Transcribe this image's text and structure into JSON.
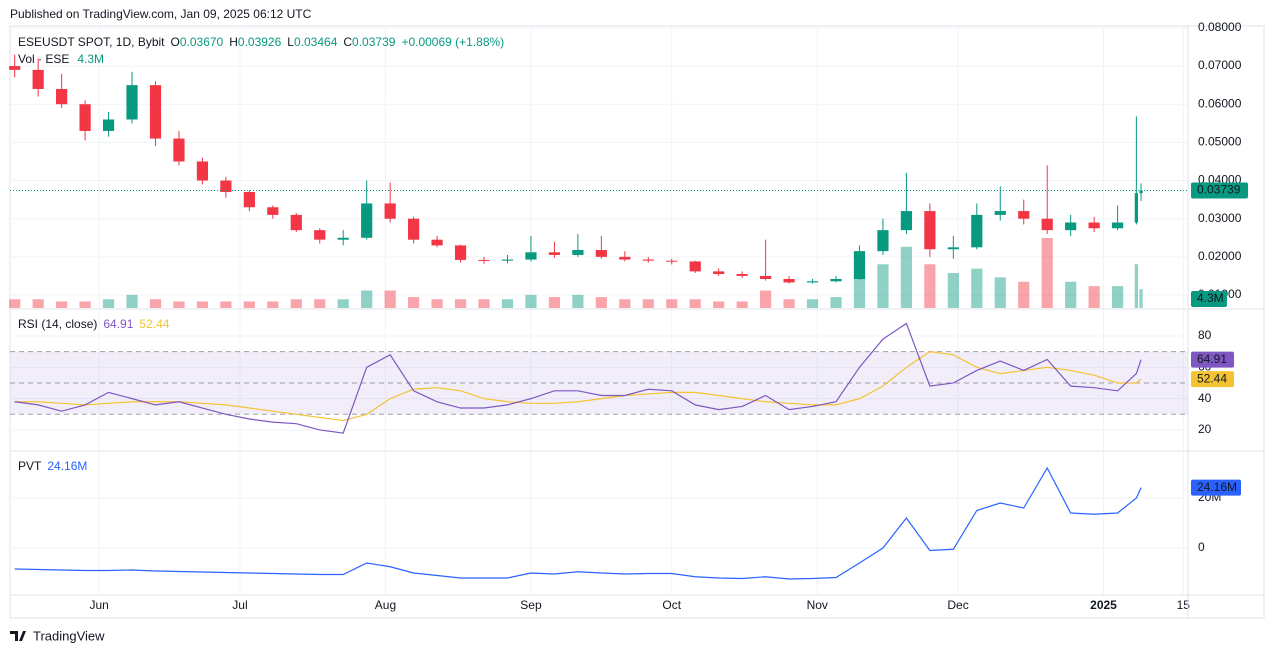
{
  "page": {
    "published": "Published on TradingView.com, Jan 09, 2025 06:12 UTC",
    "brand": "TradingView"
  },
  "chart_data": [
    {
      "type": "candlestick",
      "title": "ESEUSDT SPOT, 1D, Bybit",
      "ohlc_legend": [
        {
          "key": "O",
          "text": "0.03670"
        },
        {
          "key": "H",
          "text": "0.03926"
        },
        {
          "key": "L",
          "text": "0.03464"
        },
        {
          "key": "C",
          "text": "0.03739"
        }
      ],
      "change": "+0.00069 (+1.88%)",
      "up_color": "#089981",
      "down_color": "#f23645",
      "x": [
        1,
        6,
        11,
        16,
        21,
        26,
        31,
        36,
        41,
        46,
        51,
        56,
        61,
        66,
        71,
        76,
        81,
        86,
        91,
        96,
        101,
        106,
        111,
        116,
        121,
        126,
        131,
        136,
        141,
        146,
        151,
        156,
        161,
        166,
        171,
        176,
        181,
        186,
        191,
        196,
        201,
        206,
        211,
        216,
        221,
        226,
        231,
        236,
        240,
        241
      ],
      "open": [
        0.07,
        0.069,
        0.064,
        0.06,
        0.053,
        0.056,
        0.065,
        0.051,
        0.045,
        0.04,
        0.037,
        0.033,
        0.031,
        0.027,
        0.0245,
        0.025,
        0.034,
        0.03,
        0.0245,
        0.023,
        0.0192,
        0.019,
        0.0193,
        0.0212,
        0.0205,
        0.0218,
        0.02,
        0.0193,
        0.019,
        0.0188,
        0.0162,
        0.0155,
        0.015,
        0.0142,
        0.0133,
        0.0136,
        0.0142,
        0.0215,
        0.027,
        0.032,
        0.022,
        0.0225,
        0.031,
        0.032,
        0.03,
        0.027,
        0.029,
        0.0275,
        0.029,
        0.0367
      ],
      "high": [
        0.073,
        0.072,
        0.068,
        0.061,
        0.058,
        0.0685,
        0.066,
        0.053,
        0.046,
        0.041,
        0.0375,
        0.0335,
        0.0315,
        0.0275,
        0.027,
        0.04,
        0.0395,
        0.0305,
        0.0255,
        0.0232,
        0.02,
        0.0205,
        0.0255,
        0.024,
        0.026,
        0.0255,
        0.0215,
        0.02,
        0.0195,
        0.019,
        0.017,
        0.0162,
        0.0245,
        0.015,
        0.0142,
        0.015,
        0.023,
        0.03,
        0.042,
        0.034,
        0.0255,
        0.034,
        0.0385,
        0.035,
        0.044,
        0.031,
        0.0305,
        0.0335,
        0.0568,
        0.03926
      ],
      "low": [
        0.067,
        0.062,
        0.059,
        0.0505,
        0.0515,
        0.055,
        0.049,
        0.044,
        0.039,
        0.0355,
        0.032,
        0.03,
        0.0265,
        0.0235,
        0.023,
        0.0245,
        0.029,
        0.0235,
        0.0225,
        0.0185,
        0.0182,
        0.0183,
        0.0188,
        0.0198,
        0.02,
        0.0195,
        0.0188,
        0.0185,
        0.018,
        0.0158,
        0.015,
        0.0145,
        0.0138,
        0.013,
        0.013,
        0.0133,
        0.014,
        0.0205,
        0.026,
        0.02,
        0.0195,
        0.022,
        0.0295,
        0.0285,
        0.026,
        0.0255,
        0.0265,
        0.027,
        0.0285,
        0.03464
      ],
      "close": [
        0.069,
        0.064,
        0.06,
        0.053,
        0.056,
        0.065,
        0.051,
        0.045,
        0.04,
        0.037,
        0.033,
        0.031,
        0.027,
        0.0245,
        0.025,
        0.034,
        0.03,
        0.0245,
        0.023,
        0.0192,
        0.019,
        0.0193,
        0.0212,
        0.0205,
        0.0218,
        0.02,
        0.0193,
        0.019,
        0.0188,
        0.0162,
        0.0155,
        0.015,
        0.0142,
        0.0133,
        0.0136,
        0.0142,
        0.0215,
        0.027,
        0.032,
        0.022,
        0.0225,
        0.031,
        0.032,
        0.03,
        0.027,
        0.029,
        0.0275,
        0.029,
        0.0367,
        0.03739
      ],
      "volume": {
        "name": "Vol · ESE",
        "last_label": "4.3M",
        "values": [
          2,
          2,
          1.5,
          1.5,
          2,
          3,
          2,
          1.5,
          1.5,
          1.5,
          1.5,
          1.5,
          2,
          2,
          2,
          4,
          4,
          2.5,
          2,
          2,
          2,
          2,
          3,
          2.5,
          3,
          2.5,
          2,
          2,
          2,
          2,
          1.5,
          1.5,
          4,
          2,
          2,
          2.5,
          8,
          10,
          14,
          10,
          8,
          9,
          7,
          6,
          16,
          6,
          5,
          5,
          10,
          4.3
        ]
      },
      "last_price": {
        "value": 0.03739,
        "label": "0.03739"
      },
      "xlim": [
        0,
        251
      ],
      "xticks": [
        {
          "value": 19,
          "label": "Jun"
        },
        {
          "value": 49,
          "label": "Jul"
        },
        {
          "value": 80,
          "label": "Aug"
        },
        {
          "value": 111,
          "label": "Sep"
        },
        {
          "value": 141,
          "label": "Oct"
        },
        {
          "value": 172,
          "label": "Nov"
        },
        {
          "value": 202,
          "label": "Dec"
        },
        {
          "value": 233,
          "label": "2025"
        },
        {
          "value": 250,
          "label": "15"
        }
      ],
      "ylim": [
        0.0066,
        0.0805
      ],
      "yticks": [
        {
          "value": 0.01,
          "label": "0.01000"
        },
        {
          "value": 0.02,
          "label": "0.02000"
        },
        {
          "value": 0.03,
          "label": "0.03000"
        },
        {
          "value": 0.04,
          "label": "0.04000"
        },
        {
          "value": 0.05,
          "label": "0.05000"
        },
        {
          "value": 0.06,
          "label": "0.06000"
        },
        {
          "value": 0.07,
          "label": "0.07000"
        },
        {
          "value": 0.08,
          "label": "0.08000"
        }
      ],
      "grid": true
    },
    {
      "type": "line",
      "title": "RSI (14, close)",
      "series": [
        {
          "name": "RSI",
          "color": "#7e57c2",
          "values": [
            38,
            36,
            32,
            36,
            44,
            40,
            36,
            38,
            34,
            30,
            27,
            25,
            24,
            20,
            18,
            60,
            68,
            45,
            38,
            34,
            34,
            36,
            40,
            45,
            45,
            42,
            42,
            46,
            45,
            36,
            33,
            35,
            42,
            33,
            35,
            38,
            60,
            78,
            88,
            48,
            50,
            58,
            64,
            58,
            65,
            48,
            47,
            45,
            56,
            64.91
          ]
        },
        {
          "name": "RSI-based MA",
          "color": "#f5c231",
          "values": [
            38,
            38,
            37,
            36,
            37,
            38,
            38,
            38,
            37,
            36,
            34,
            32,
            30,
            28,
            26,
            30,
            40,
            46,
            47,
            45,
            40,
            38,
            37,
            37,
            38,
            40,
            42,
            43,
            44,
            44,
            42,
            40,
            38,
            37,
            36,
            36,
            40,
            48,
            60,
            70,
            68,
            60,
            56,
            58,
            60,
            58,
            55,
            50,
            50,
            52.44
          ]
        }
      ],
      "band": [
        30,
        70
      ],
      "midline": 50,
      "ylim": [
        7.2,
        96.6
      ],
      "yticks": [
        20,
        40,
        60,
        80
      ],
      "grid": true
    },
    {
      "type": "line",
      "title": "PVT",
      "series": [
        {
          "name": "PVT",
          "color": "#2962ff",
          "last_label": "24.16M",
          "values": [
            -8.4,
            -8.6,
            -8.8,
            -9,
            -9,
            -8.8,
            -9.2,
            -9.4,
            -9.6,
            -9.8,
            -10,
            -10.2,
            -10.4,
            -10.6,
            -10.6,
            -6,
            -7.5,
            -10,
            -11,
            -12,
            -12,
            -12,
            -10,
            -10.4,
            -9.5,
            -10,
            -10.4,
            -10.2,
            -10.2,
            -11.5,
            -12,
            -12.2,
            -11.5,
            -12.4,
            -12.2,
            -11.8,
            -6,
            0,
            12,
            -1,
            -0.5,
            15,
            18,
            16,
            32,
            14,
            13.5,
            14,
            20,
            24.16
          ]
        }
      ],
      "ylim": [
        -18.8,
        38.4
      ],
      "yticks": [
        0,
        {
          "value": 20,
          "label": "20M"
        }
      ],
      "grid": true
    }
  ]
}
